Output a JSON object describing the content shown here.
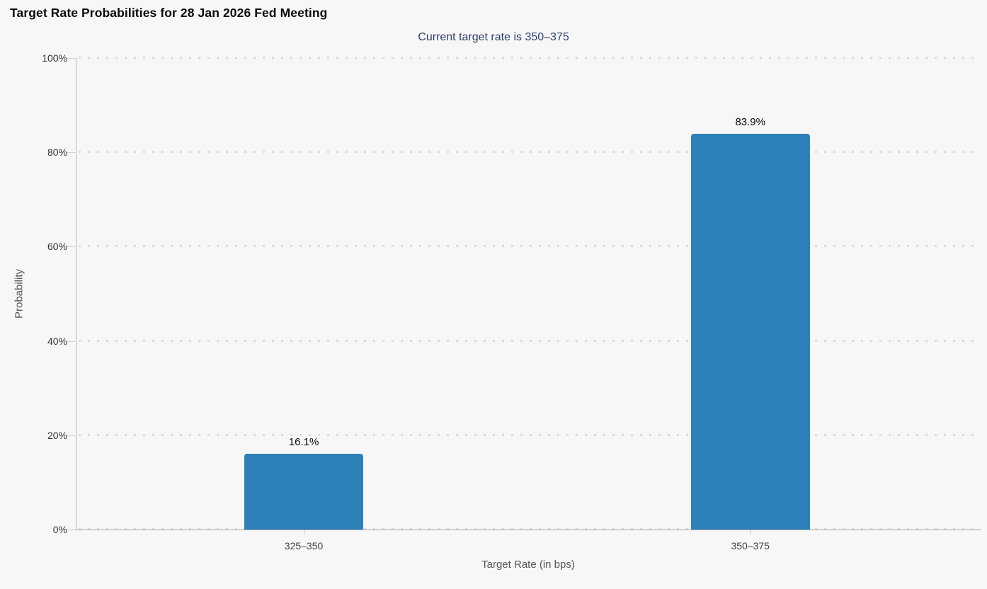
{
  "chart_data": {
    "type": "bar",
    "title": "Target Rate Probabilities for 28 Jan 2026 Fed Meeting",
    "subtitle": "Current target rate is 350–375",
    "xlabel": "Target Rate (in bps)",
    "ylabel": "Probability",
    "categories": [
      "325–350",
      "350–375"
    ],
    "values": [
      16.1,
      83.9
    ],
    "value_labels": [
      "16.1%",
      "83.9%"
    ],
    "ylim": [
      0,
      100
    ],
    "yticks": [
      0,
      20,
      40,
      60,
      80,
      100
    ],
    "ytick_labels": [
      "0%",
      "20%",
      "40%",
      "60%",
      "80%",
      "100%"
    ],
    "bar_color": "#2d80b8",
    "background_color": "#f7f7f7",
    "grid": "horizontal dotted",
    "legend": "none"
  }
}
